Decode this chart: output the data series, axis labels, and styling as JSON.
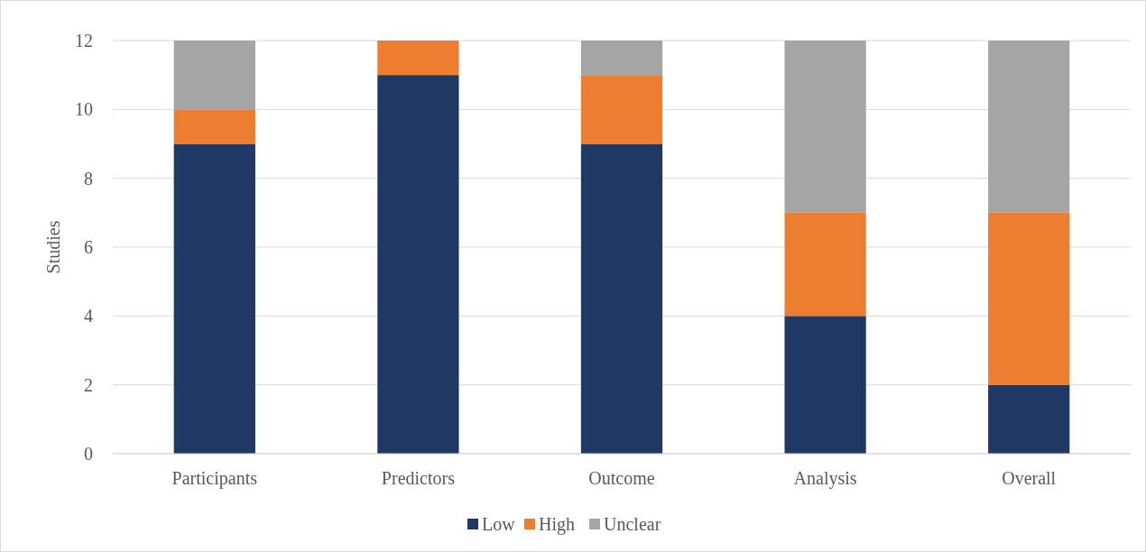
{
  "chart_data": {
    "type": "bar",
    "stacked": true,
    "ylabel": "Studies",
    "categories": [
      "Participants",
      "Predictors",
      "Outcome",
      "Analysis",
      "Overall"
    ],
    "series": [
      {
        "name": "Low",
        "color": "#203864",
        "values": [
          9,
          11,
          9,
          4,
          2
        ]
      },
      {
        "name": "High",
        "color": "#ed7d31",
        "values": [
          1,
          1,
          2,
          3,
          5
        ]
      },
      {
        "name": "Unclear",
        "color": "#a5a5a5",
        "values": [
          2,
          0,
          1,
          5,
          5
        ]
      }
    ],
    "ylim": [
      0,
      12
    ],
    "yticks": [
      0,
      2,
      4,
      6,
      8,
      10,
      12
    ],
    "grid": "y",
    "legend": "bottom"
  }
}
